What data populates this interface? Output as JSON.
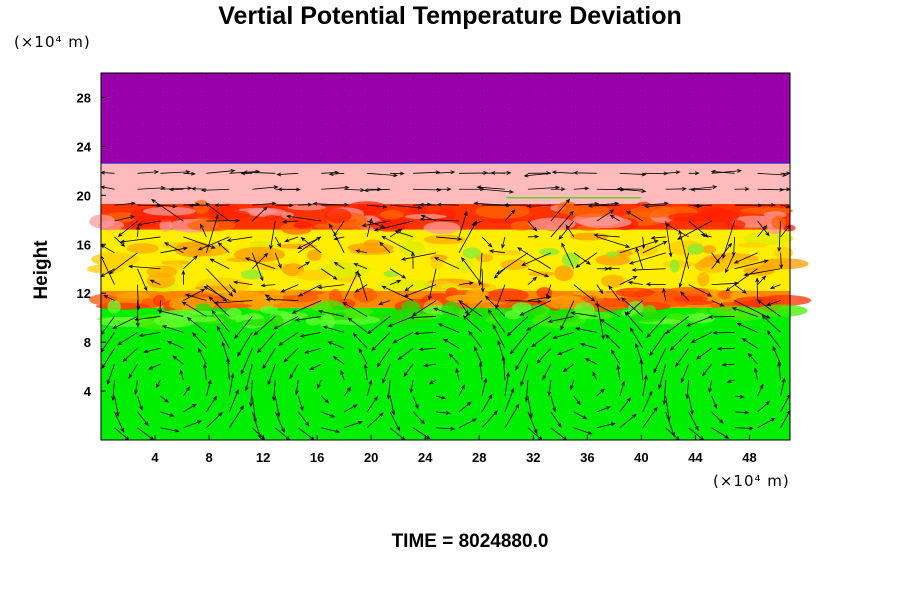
{
  "chart_data": {
    "type": "heatmap",
    "title": "Vertial Potential Temperature Deviation",
    "ylabel": "Height",
    "y_unit": "(×10⁴ m)",
    "x_unit": "(×10⁴ m)",
    "footer": "TIME = 8024880.0",
    "xlim": [
      0,
      51
    ],
    "ylim": [
      0,
      30
    ],
    "x_ticks": [
      4,
      8,
      12,
      16,
      20,
      24,
      28,
      32,
      36,
      40,
      44,
      48
    ],
    "y_ticks": [
      4,
      8,
      12,
      16,
      20,
      24,
      28
    ],
    "bands": [
      {
        "y0": 0,
        "y1": 10.8,
        "color": "#00ee00"
      },
      {
        "y0": 10.8,
        "y1": 12.2,
        "color": "#ff8800"
      },
      {
        "y0": 12.2,
        "y1": 17.2,
        "color": "#ffee00"
      },
      {
        "y0": 17.2,
        "y1": 19.3,
        "color": "#ff3300"
      },
      {
        "y0": 19.3,
        "y1": 22.6,
        "color": "#ffbbbb"
      },
      {
        "y0": 22.6,
        "y1": 30,
        "color": "#9900aa"
      }
    ],
    "vortex_centers_x": [
      5,
      17,
      25,
      36,
      47
    ],
    "grid": false
  }
}
